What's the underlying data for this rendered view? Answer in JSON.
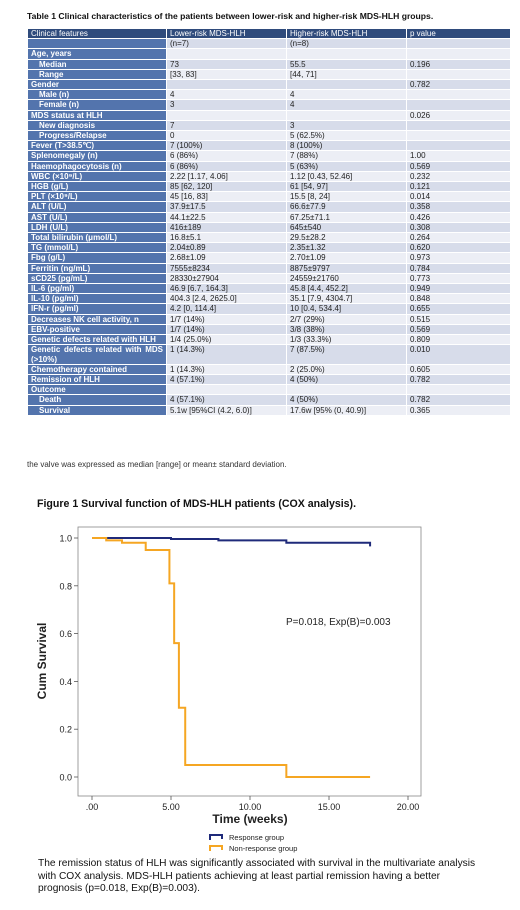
{
  "table": {
    "caption": "Table 1 Clinical characteristics of the patients between lower-risk and higher-risk MDS-HLH groups.",
    "headers": [
      "Clinical features",
      "Lower-risk MDS-HLH",
      "Higher-risk MDS-HLH",
      "p value"
    ],
    "rows": [
      {
        "label": "",
        "lower": "(n=7)",
        "higher": "(n=8)",
        "p": ""
      },
      {
        "label": "Age, years",
        "lower": "",
        "higher": "",
        "p": ""
      },
      {
        "label": "Median",
        "lower": "73",
        "higher": "55.5",
        "p": "0.196",
        "indent": true
      },
      {
        "label": "Range",
        "lower": "[33, 83]",
        "higher": "[44, 71]",
        "p": "",
        "indent": true
      },
      {
        "label": "Gender",
        "lower": "",
        "higher": "",
        "p": "0.782"
      },
      {
        "label": "Male (n)",
        "lower": "4",
        "higher": "4",
        "p": "",
        "indent": true
      },
      {
        "label": "Female (n)",
        "lower": "3",
        "higher": "4",
        "p": "",
        "indent": true
      },
      {
        "label": "MDS status at HLH",
        "lower": "",
        "higher": "",
        "p": "0.026"
      },
      {
        "label": "New diagnosis",
        "lower": "7",
        "higher": "3",
        "p": "",
        "indent": true
      },
      {
        "label": "Progress/Relapse",
        "lower": "0",
        "higher": "5 (62.5%)",
        "p": "",
        "indent": true
      },
      {
        "label": "Fever (T>38.5℃)",
        "lower": "7 (100%)",
        "higher": "8 (100%)",
        "p": ""
      },
      {
        "label": "Splenomegaly (n)",
        "lower": "6 (86%)",
        "higher": "7 (88%)",
        "p": "1.00"
      },
      {
        "label": "Haemophagocytosis (n)",
        "lower": "6 (86%)",
        "higher": "5 (63%)",
        "p": "0.569"
      },
      {
        "label": "WBC (×10⁹/L)",
        "lower": "2.22 [1.17, 4.06]",
        "higher": "1.12 [0.43, 52.46]",
        "p": "0.232"
      },
      {
        "label": "HGB (g/L)",
        "lower": "85 [62, 120]",
        "higher": "61 [54, 97]",
        "p": "0.121"
      },
      {
        "label": "PLT (×10⁹/L)",
        "lower": "45 [16, 83]",
        "higher": "15.5 [8, 24]",
        "p": "0.014"
      },
      {
        "label": "ALT (U/L)",
        "lower": "37.9±17.5",
        "higher": "66.6±77.9",
        "p": "0.358"
      },
      {
        "label": "AST (U/L)",
        "lower": "44.1±22.5",
        "higher": "67.25±71.1",
        "p": "0.426"
      },
      {
        "label": "LDH (U/L)",
        "lower": "416±189",
        "higher": "645±540",
        "p": "0.308"
      },
      {
        "label": "Total bilirubin (μmol/L)",
        "lower": "16.8±5.1",
        "higher": "29.5±28.2",
        "p": "0.264"
      },
      {
        "label": "TG (mmol/L)",
        "lower": "2.04±0.89",
        "higher": "2.35±1.32",
        "p": "0.620"
      },
      {
        "label": "Fbg (g/L)",
        "lower": "2.68±1.09",
        "higher": "2.70±1.09",
        "p": "0.973"
      },
      {
        "label": "Ferritin (ng/mL)",
        "lower": "7555±8234",
        "higher": "8875±9797",
        "p": "0.784"
      },
      {
        "label": "sCD25 (pg/mL)",
        "lower": "28330±27904",
        "higher": "24559±21760",
        "p": "0.773"
      },
      {
        "label": "IL-6 (pg/ml)",
        "lower": "46.9 [6.7, 164.3]",
        "higher": "45.8 [4.4, 452.2]",
        "p": "0.949"
      },
      {
        "label": "IL-10 (pg/ml)",
        "lower": "404.3 [2.4, 2625.0]",
        "higher": "35.1 [7.9, 4304.7]",
        "p": "0.848"
      },
      {
        "label": "IFN-r (pg/ml)",
        "lower": "4.2 [0, 114.4]",
        "higher": "10 [0.4, 534.4]",
        "p": "0.655"
      },
      {
        "label": "Decreases NK cell activity, n",
        "lower": "1/7 (14%)",
        "higher": "2/7 (29%)",
        "p": "0.515"
      },
      {
        "label": "EBV-positive",
        "lower": "1/7 (14%)",
        "higher": "3/8 (38%)",
        "p": "0.569"
      },
      {
        "label": "Genetic defects related with HLH",
        "lower": "1/4 (25.0%)",
        "higher": "1/3 (33.3%)",
        "p": "0.809"
      },
      {
        "label": "Genetic defects related with MDS (>10%)",
        "lower": "1 (14.3%)",
        "higher": "7 (87.5%)",
        "p": "0.010",
        "tall": true
      },
      {
        "label": "Chemotherapy contained",
        "lower": "1 (14.3%)",
        "higher": "2 (25.0%)",
        "p": "0.605"
      },
      {
        "label": "Remission of HLH",
        "lower": "4 (57.1%)",
        "higher": "4 (50%)",
        "p": "0.782"
      },
      {
        "label": "Outcome",
        "lower": "",
        "higher": "",
        "p": ""
      },
      {
        "label": "Death",
        "lower": "4 (57.1%)",
        "higher": "4 (50%)",
        "p": "0.782",
        "indent": true
      },
      {
        "label": "Survival",
        "lower": "5.1w [95%CI (4.2, 6.0)]",
        "higher": "17.6w [95% (0, 40.9)]",
        "p": "0.365",
        "indent": true
      }
    ],
    "note": "the valve was expressed as median [range] or mean± standard deviation."
  },
  "figure": {
    "caption": "Figure 1 Survival function of MDS-HLH patients (COX analysis)."
  },
  "chart_data": {
    "type": "line",
    "title": "",
    "xlabel": "Time (weeks)",
    "ylabel": "Cum Survival",
    "xlim": [
      0,
      20
    ],
    "ylim": [
      0,
      1.0
    ],
    "x_ticks": [
      ".00",
      "5.00",
      "10.00",
      "15.00",
      "20.00"
    ],
    "x_tick_values": [
      0,
      5,
      10,
      15,
      20
    ],
    "y_ticks": [
      "0.0",
      "0.2",
      "0.4",
      "0.6",
      "0.8",
      "1.0"
    ],
    "y_tick_values": [
      0,
      0.2,
      0.4,
      0.6,
      0.8,
      1.0
    ],
    "annotation": "P=0.018, Exp(B)=0.003",
    "grid": false,
    "legend_position": "bottom",
    "series": [
      {
        "name": "Response group",
        "color": "#1f2a7a",
        "step": true,
        "x": [
          0,
          1.0,
          5.0,
          8.0,
          12.3,
          17.6,
          17.6
        ],
        "y": [
          1.0,
          1.0,
          0.996,
          0.99,
          0.98,
          0.98,
          0.965
        ]
      },
      {
        "name": "Non-response group",
        "color": "#f5a623",
        "step": true,
        "x": [
          0,
          0.9,
          1.9,
          3.4,
          4.9,
          5.2,
          5.5,
          5.9,
          12.3,
          17.6
        ],
        "y": [
          1.0,
          0.99,
          0.98,
          0.95,
          0.81,
          0.56,
          0.29,
          0.05,
          0.0,
          0.0
        ]
      }
    ]
  },
  "paragraph": "The remission status of HLH was significantly associated with survival in the multivariate analysis with COX analysis. MDS-HLH patients achieving at least partial remission having a better prognosis (p=0.018, Exp(B)=0.003)."
}
